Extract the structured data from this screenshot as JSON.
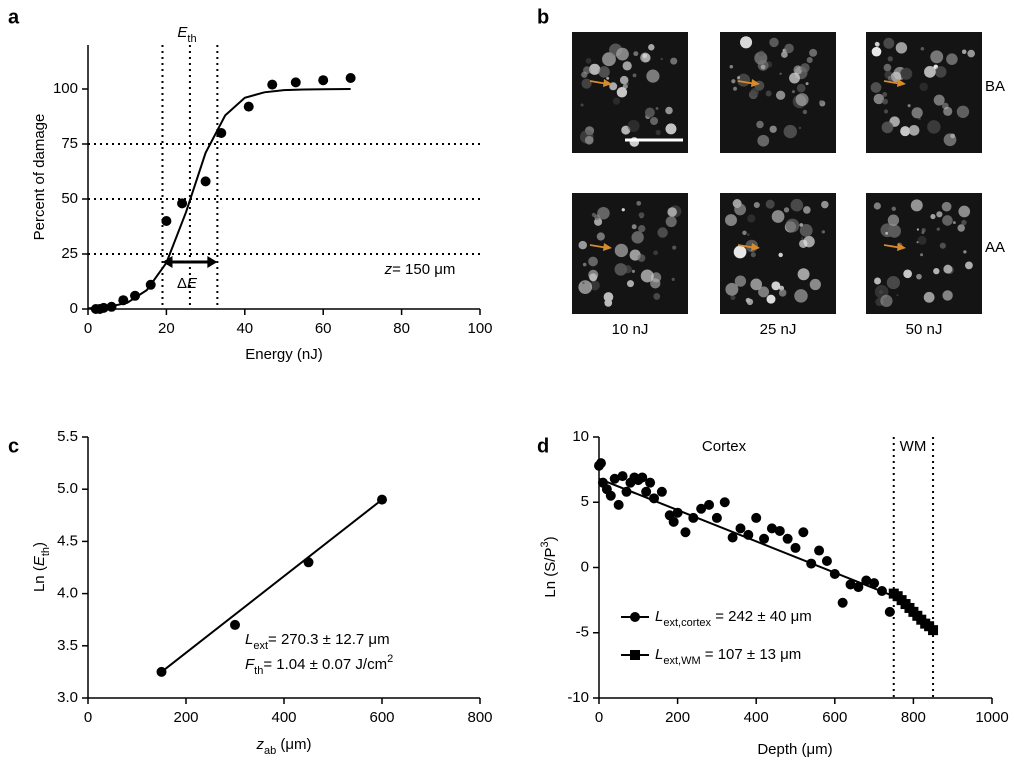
{
  "chart_data": [
    {
      "label": "a",
      "type": "scatter",
      "xlabel": [
        {
          "t": "Energy (nJ)"
        }
      ],
      "ylabel": [
        {
          "t": "Percent of damage"
        }
      ],
      "xlim": [
        0,
        100
      ],
      "ylim": [
        0,
        120
      ],
      "xticks": [
        0,
        20,
        40,
        60,
        80,
        100
      ],
      "yticks": [
        0,
        25,
        50,
        75,
        100
      ],
      "vlines": [
        19,
        26,
        33
      ],
      "hlines": [
        25,
        50,
        75
      ],
      "ref_style": "dotted",
      "double_arrow": true,
      "series": [
        {
          "marker": "circle",
          "color": "#000000",
          "x": [
            2,
            3,
            4,
            6,
            9,
            12,
            16,
            20,
            24,
            30,
            34,
            41,
            47,
            53,
            60,
            67
          ],
          "values": [
            0,
            0,
            0.5,
            1,
            4,
            6,
            11,
            40,
            48,
            58,
            80,
            92,
            102,
            103,
            104,
            105
          ]
        },
        {
          "marker": "line",
          "color": "#000000",
          "x": [
            0,
            5,
            10,
            15,
            20,
            25,
            30,
            35,
            40,
            45,
            50,
            55,
            60,
            67
          ],
          "values": [
            0.3,
            0.9,
            2.8,
            8.6,
            21,
            44,
            71,
            88,
            96,
            98.5,
            99.5,
            99.8,
            99.9,
            100
          ]
        }
      ],
      "annotations": [
        [
          {
            "t": "E",
            "s": "i"
          },
          {
            "t": "th",
            "s": "sub"
          }
        ],
        [
          {
            "t": "Δ"
          },
          {
            "t": "E",
            "s": "i"
          }
        ],
        [
          {
            "t": "z",
            "s": "i"
          },
          {
            "t": "= 150 μm"
          }
        ]
      ]
    },
    {
      "label": "b",
      "type": "image_grid",
      "columns": [
        "10 nJ",
        "25 nJ",
        "50 nJ"
      ],
      "rows": [
        "BA",
        "AA"
      ],
      "arrow_color": "#d98a2b"
    },
    {
      "label": "c",
      "type": "scatter",
      "xlabel": [
        {
          "t": "z",
          "s": "i"
        },
        {
          "t": "ab",
          "s": "sub"
        },
        {
          "t": " (μm)"
        }
      ],
      "ylabel": [
        {
          "t": "Ln ("
        },
        {
          "t": "E",
          "s": "i"
        },
        {
          "t": "th",
          "s": "sub"
        },
        {
          "t": ")"
        }
      ],
      "xlim": [
        0,
        800
      ],
      "ylim": [
        3.0,
        5.5
      ],
      "xticks": [
        0,
        200,
        400,
        600,
        800
      ],
      "yticks": [
        {
          "value": 3.0,
          "label": "3.0"
        },
        3.5,
        {
          "value": 4.0,
          "label": "4.0"
        },
        4.5,
        {
          "value": 5.0,
          "label": "5.0"
        },
        5.5
      ],
      "series": [
        {
          "marker": "circle",
          "color": "#000000",
          "x": [
            150,
            300,
            450,
            600
          ],
          "values": [
            3.25,
            3.7,
            4.3,
            4.9
          ]
        },
        {
          "marker": "line",
          "color": "#000000",
          "x": [
            150,
            600
          ],
          "values": [
            3.25,
            4.9
          ]
        }
      ],
      "annotations": [
        [
          {
            "t": "L",
            "s": "i"
          },
          {
            "t": "ext",
            "s": "sub"
          },
          {
            "t": "= 270.3 ± 12.7 μm"
          }
        ],
        [
          {
            "t": "F",
            "s": "i"
          },
          {
            "t": "th",
            "s": "sub"
          },
          {
            "t": "= 1.04 ± 0.07 J/cm"
          },
          {
            "t": "2",
            "s": "sup"
          }
        ]
      ]
    },
    {
      "label": "d",
      "type": "scatter",
      "xlabel": [
        {
          "t": "Depth (μm)"
        }
      ],
      "ylabel": [
        {
          "t": "Ln (S/P"
        },
        {
          "t": "3",
          "s": "sup"
        },
        {
          "t": ")"
        }
      ],
      "xlim": [
        0,
        1000
      ],
      "ylim": [
        -10,
        10
      ],
      "xticks": [
        0,
        200,
        400,
        600,
        800,
        1000
      ],
      "yticks": [
        -10,
        -5,
        0,
        5,
        10
      ],
      "vlines": [
        750,
        850
      ],
      "ref_style": "dotted",
      "series": [
        {
          "name": [
            {
              "t": "L",
              "s": "i"
            },
            {
              "t": "ext,cortex",
              "s": "sub"
            },
            {
              "t": " = 242 ± 40 μm"
            }
          ],
          "marker": "circle",
          "color": "#000000",
          "x": [
            0,
            5,
            10,
            20,
            30,
            40,
            50,
            60,
            70,
            80,
            90,
            100,
            110,
            120,
            130,
            140,
            160,
            180,
            190,
            200,
            220,
            240,
            260,
            280,
            300,
            320,
            340,
            360,
            380,
            400,
            420,
            440,
            460,
            480,
            500,
            520,
            540,
            560,
            580,
            600,
            620,
            640,
            660,
            680,
            700,
            720,
            740
          ],
          "values": [
            7.8,
            8,
            6.5,
            6,
            5.5,
            6.8,
            4.8,
            7,
            5.8,
            6.5,
            6.9,
            6.7,
            6.9,
            5.8,
            6.5,
            5.3,
            5.8,
            4,
            3.5,
            4.2,
            2.7,
            3.8,
            4.5,
            4.8,
            3.8,
            5,
            2.3,
            3,
            2.5,
            3.8,
            2.2,
            3,
            2.8,
            2.2,
            1.5,
            2.7,
            0.3,
            1.3,
            0.5,
            -0.5,
            -2.7,
            -1.3,
            -1.5,
            -1,
            -1.2,
            -1.8,
            -3.4
          ]
        },
        {
          "name": [
            {
              "t": "L",
              "s": "i"
            },
            {
              "t": "ext,WM",
              "s": "sub"
            },
            {
              "t": " =  107 ± 13 μm"
            }
          ],
          "marker": "square",
          "color": "#000000",
          "x": [
            750,
            760,
            770,
            780,
            790,
            800,
            810,
            820,
            830,
            840,
            850
          ],
          "values": [
            -2,
            -2.2,
            -2.5,
            -2.8,
            -3.1,
            -3.4,
            -3.7,
            -4,
            -4.3,
            -4.5,
            -4.8
          ]
        },
        {
          "marker": "line",
          "color": "#000000",
          "x": [
            0,
            750
          ],
          "values": [
            6.8,
            -2.2
          ]
        },
        {
          "marker": "line",
          "color": "#000000",
          "x": [
            750,
            850
          ],
          "values": [
            -2.2,
            -4.8
          ]
        }
      ],
      "annotations": [
        [
          {
            "t": "Cortex"
          }
        ],
        [
          {
            "t": "WM"
          }
        ]
      ]
    }
  ]
}
